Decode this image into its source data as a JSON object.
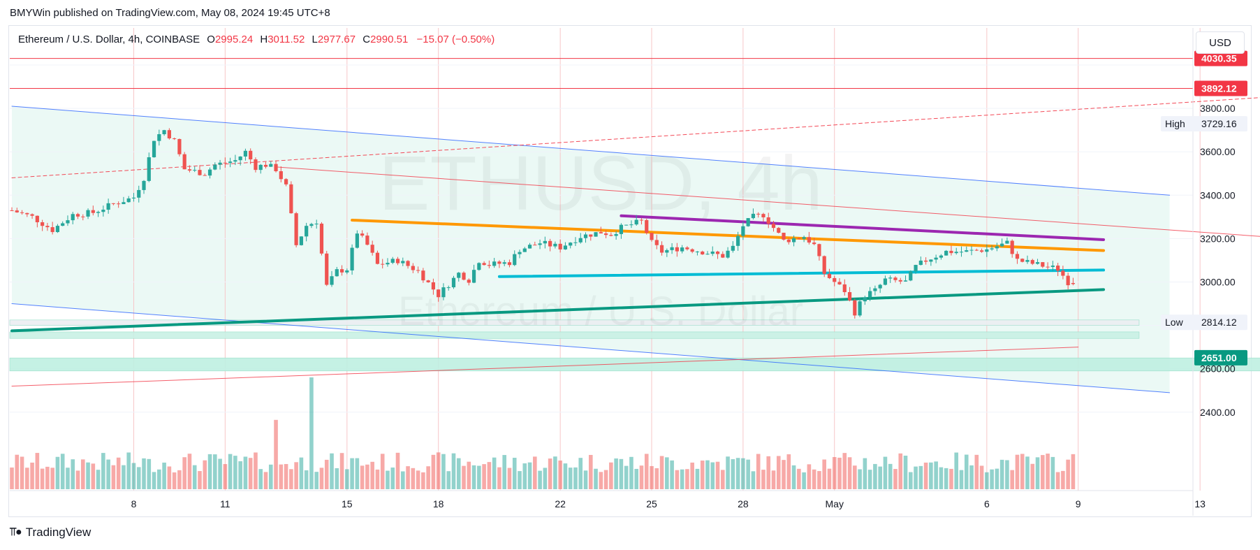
{
  "publisher": "BMYWin published on TradingView.com, May 08, 2024 19:45 UTC+8",
  "legend": {
    "symbol": "Ethereum / U.S. Dollar, 4h, COINBASE",
    "open_label": "O",
    "open": "2995.24",
    "high_label": "H",
    "high": "3011.52",
    "low_label": "L",
    "low": "2977.67",
    "close_label": "C",
    "close": "2990.51",
    "change": "−15.07 (−0.50%)"
  },
  "currency": "USD",
  "watermark": {
    "ticker": "ETHUSD, 4h",
    "name": "Ethereum / U.S. Dollar"
  },
  "footer": {
    "brand": "TradingView",
    "logo_icon": "tradingview-logo-icon"
  },
  "colors": {
    "up": "#26a69a",
    "down": "#ef5350",
    "red_line": "#f23645",
    "blue_line": "#2962ff",
    "orange": "#ff9800",
    "purple": "#9c27b0",
    "cyan": "#00bcd4",
    "green": "#089981",
    "channel_fill": "#e6f7f3"
  },
  "chart_data": {
    "type": "candlestick",
    "y_axis": {
      "ticks": [
        2400,
        2600,
        2800,
        3000,
        3200,
        3400,
        3600,
        3800,
        4000
      ],
      "tick_labels": [
        "2400.00",
        "2600.00",
        "",
        "3000.00",
        "3200.00",
        "3400.00",
        "3600.00",
        "3800.00",
        ""
      ]
    },
    "x_axis": {
      "ticks": [
        {
          "label": "8",
          "bar": 24
        },
        {
          "label": "11",
          "bar": 42
        },
        {
          "label": "15",
          "bar": 66
        },
        {
          "label": "18",
          "bar": 84
        },
        {
          "label": "22",
          "bar": 108
        },
        {
          "label": "25",
          "bar": 126
        },
        {
          "label": "28",
          "bar": 144
        },
        {
          "label": "May",
          "bar": 162
        },
        {
          "label": "6",
          "bar": 192
        },
        {
          "label": "9",
          "bar": 210
        },
        {
          "label": "13",
          "bar": 234
        }
      ],
      "bar_interval": "4h",
      "total_bars": 246
    },
    "ohlc_close_path": [
      [
        0,
        3330
      ],
      [
        4,
        3300
      ],
      [
        8,
        3240
      ],
      [
        12,
        3310
      ],
      [
        16,
        3320
      ],
      [
        20,
        3360
      ],
      [
        24,
        3390
      ],
      [
        26,
        3480
      ],
      [
        28,
        3660
      ],
      [
        30,
        3700
      ],
      [
        32,
        3650
      ],
      [
        34,
        3520
      ],
      [
        38,
        3500
      ],
      [
        40,
        3540
      ],
      [
        44,
        3560
      ],
      [
        46,
        3600
      ],
      [
        48,
        3530
      ],
      [
        50,
        3540
      ],
      [
        52,
        3520
      ],
      [
        54,
        3440
      ],
      [
        56,
        3170
      ],
      [
        58,
        3260
      ],
      [
        60,
        3280
      ],
      [
        62,
        2980
      ],
      [
        64,
        3050
      ],
      [
        66,
        3060
      ],
      [
        68,
        3230
      ],
      [
        70,
        3170
      ],
      [
        72,
        3080
      ],
      [
        76,
        3100
      ],
      [
        80,
        3050
      ],
      [
        84,
        2940
      ],
      [
        88,
        3040
      ],
      [
        90,
        3010
      ],
      [
        92,
        3100
      ],
      [
        94,
        3080
      ],
      [
        98,
        3090
      ],
      [
        100,
        3150
      ],
      [
        104,
        3180
      ],
      [
        108,
        3160
      ],
      [
        112,
        3210
      ],
      [
        116,
        3230
      ],
      [
        118,
        3220
      ],
      [
        120,
        3250
      ],
      [
        124,
        3280
      ],
      [
        126,
        3180
      ],
      [
        128,
        3140
      ],
      [
        132,
        3160
      ],
      [
        136,
        3140
      ],
      [
        140,
        3120
      ],
      [
        142,
        3160
      ],
      [
        144,
        3260
      ],
      [
        146,
        3300
      ],
      [
        148,
        3310
      ],
      [
        150,
        3250
      ],
      [
        152,
        3190
      ],
      [
        156,
        3210
      ],
      [
        158,
        3170
      ],
      [
        160,
        3040
      ],
      [
        162,
        3000
      ],
      [
        164,
        2960
      ],
      [
        166,
        2860
      ],
      [
        168,
        2940
      ],
      [
        170,
        2960
      ],
      [
        172,
        3010
      ],
      [
        176,
        3000
      ],
      [
        178,
        3070
      ],
      [
        180,
        3100
      ],
      [
        184,
        3140
      ],
      [
        188,
        3140
      ],
      [
        192,
        3150
      ],
      [
        196,
        3180
      ],
      [
        198,
        3100
      ],
      [
        202,
        3080
      ],
      [
        206,
        3060
      ],
      [
        208,
        3000
      ],
      [
        209,
        2990
      ]
    ],
    "volume_spikes": [
      {
        "bar": 52,
        "rel": 0.62
      },
      {
        "bar": 59,
        "rel": 1.0
      },
      {
        "bar": 27,
        "rel": 0.27
      }
    ],
    "horizontal_levels": [
      {
        "price": "4030.35",
        "value": 4030.35,
        "style": "solid-red",
        "badge": "red"
      },
      {
        "price": "3892.12",
        "value": 3892.12,
        "style": "solid-red",
        "badge": "red"
      },
      {
        "price": "2651.00",
        "value": 2651.0,
        "style": "zone",
        "badge": "green"
      }
    ],
    "stat_labels": [
      {
        "label": "High",
        "price": "3729.16",
        "value": 3729.16
      },
      {
        "label": "Low",
        "price": "2814.12",
        "value": 2814.12
      }
    ],
    "zones": [
      {
        "from": 2800,
        "to": 2825,
        "end_bar": 222,
        "color": "#eceef2"
      },
      {
        "from": 2740,
        "to": 2770,
        "end_bar": 222,
        "color": "#c9f1e5"
      },
      {
        "from": 2590,
        "to": 2650,
        "end_bar": 246,
        "color": "#bff0e2"
      }
    ],
    "trendlines": [
      {
        "name": "channel-upper",
        "color": "blue",
        "from": [
          0,
          3810
        ],
        "to": [
          228,
          3400
        ]
      },
      {
        "name": "channel-lower",
        "color": "blue",
        "from": [
          0,
          2900
        ],
        "to": [
          228,
          2490
        ]
      },
      {
        "name": "red-upper",
        "color": "red",
        "from": [
          52,
          3530
        ],
        "to": [
          246,
          3210
        ]
      },
      {
        "name": "red-lower",
        "color": "red",
        "from": [
          0,
          2520
        ],
        "to": [
          210,
          2700
        ]
      },
      {
        "name": "red-dashed",
        "color": "red-dashed",
        "from": [
          0,
          3480
        ],
        "to": [
          246,
          3850
        ]
      },
      {
        "name": "orange",
        "color": "orange",
        "from": [
          67,
          3285
        ],
        "to": [
          215,
          3145
        ]
      },
      {
        "name": "purple",
        "color": "purple",
        "from": [
          120,
          3305
        ],
        "to": [
          215,
          3195
        ]
      },
      {
        "name": "cyan",
        "color": "cyan",
        "from": [
          96,
          3025
        ],
        "to": [
          215,
          3055
        ]
      },
      {
        "name": "green",
        "color": "green",
        "from": [
          0,
          2775
        ],
        "to": [
          215,
          2965
        ]
      }
    ]
  }
}
